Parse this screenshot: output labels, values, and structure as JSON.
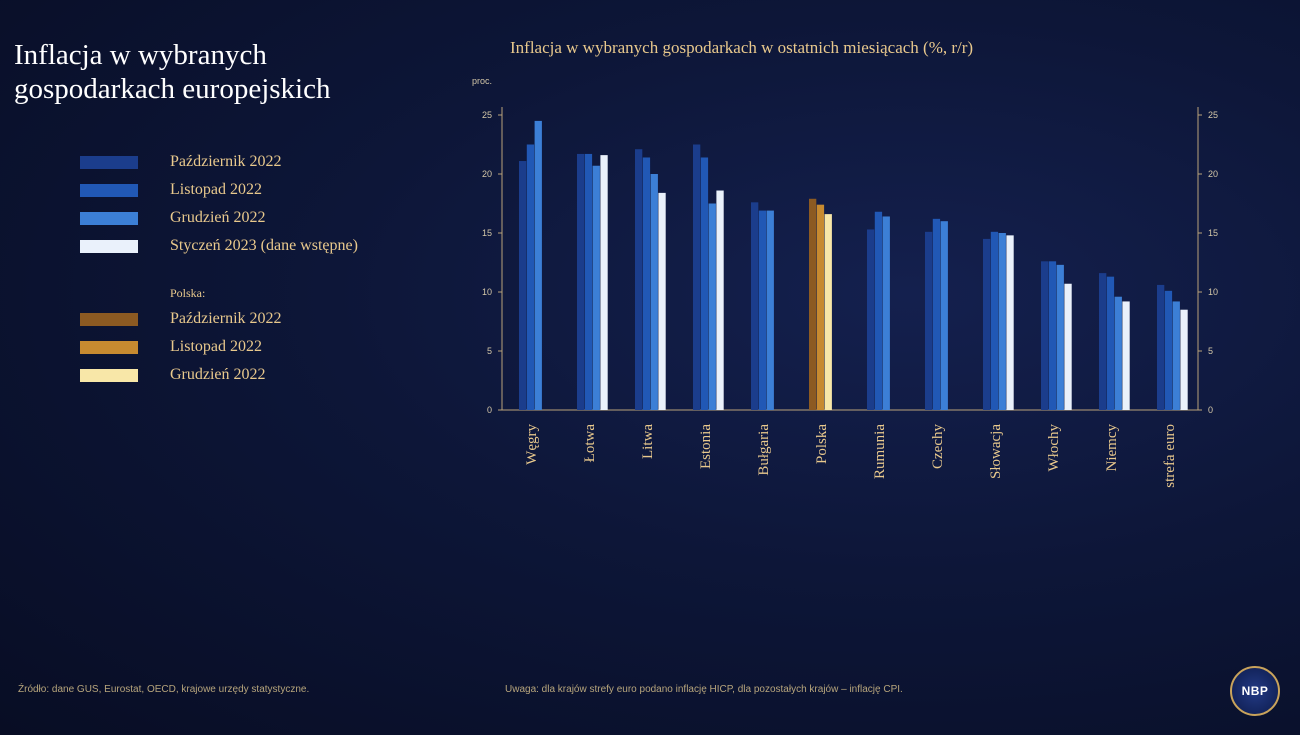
{
  "slide": {
    "title_line1": "Inflacja w wybranych",
    "title_line2": "gospodarkach europejskich",
    "source_note": "Źródło: dane GUS, Eurostat, OECD, krajowe urzędy statystyczne.",
    "remark_note": "Uwaga: dla krajów strefy euro podano inflację HICP, dla pozostałych krajów – inflację CPI.",
    "logo_text": "NBP"
  },
  "legend": {
    "items": [
      {
        "label": "Październik 2022",
        "color": "#1b3d8c"
      },
      {
        "label": "Listopad 2022",
        "color": "#2158b5"
      },
      {
        "label": "Grudzień 2022",
        "color": "#3c7fd6"
      },
      {
        "label": "Styczeń 2023 (dane wstępne)",
        "color": "#eaf1fb"
      }
    ],
    "poland_group_label": "Polska:",
    "poland_items": [
      {
        "label": "Październik 2022",
        "color": "#8c5a22"
      },
      {
        "label": "Listopad 2022",
        "color": "#c78a30"
      },
      {
        "label": "Grudzień 2022",
        "color": "#f8e7a8"
      }
    ]
  },
  "chart_data": {
    "type": "bar",
    "title": "Inflacja w wybranych gospodarkach w ostatnich miesiącach (%, r/r)",
    "ylabel": "proc.",
    "ylim": [
      0,
      25
    ],
    "yticks": [
      0,
      5,
      10,
      15,
      20,
      25
    ],
    "grid": false,
    "categories": [
      "Węgry",
      "Łotwa",
      "Litwa",
      "Estonia",
      "Bułgaria",
      "Polska",
      "Rumunia",
      "Czechy",
      "Słowacja",
      "Włochy",
      "Niemcy",
      "strefa euro"
    ],
    "series": [
      {
        "name": "Październik 2022",
        "values": [
          21.1,
          21.7,
          22.1,
          22.5,
          17.6,
          17.9,
          15.3,
          15.1,
          14.5,
          12.6,
          11.6,
          10.6
        ]
      },
      {
        "name": "Listopad 2022",
        "values": [
          22.5,
          21.7,
          21.4,
          21.4,
          16.9,
          17.4,
          16.8,
          16.2,
          15.1,
          12.6,
          11.3,
          10.1
        ]
      },
      {
        "name": "Grudzień 2022",
        "values": [
          24.5,
          20.7,
          20.0,
          17.5,
          16.9,
          16.6,
          16.4,
          16.0,
          15.0,
          12.3,
          9.6,
          9.2
        ]
      },
      {
        "name": "Styczeń 2023 (dane wstępne)",
        "values": [
          null,
          21.6,
          18.4,
          18.6,
          null,
          null,
          null,
          null,
          14.8,
          10.7,
          9.2,
          8.5
        ]
      }
    ],
    "poland_category": "Polska"
  }
}
